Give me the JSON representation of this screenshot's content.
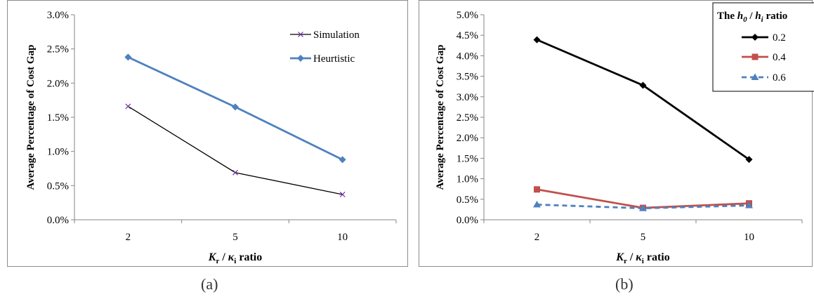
{
  "chart_data": [
    {
      "type": "line",
      "caption": "(a)",
      "ylabel": "Average Percentage of Cost Gap",
      "xlabel_parts": [
        "K",
        "r",
        " / ",
        "κ",
        "i",
        " ratio"
      ],
      "categories": [
        "2",
        "5",
        "10"
      ],
      "y_ticks": [
        "0.0%",
        "0.5%",
        "1.0%",
        "1.5%",
        "2.0%",
        "2.5%",
        "3.0%"
      ],
      "ylim": [
        0,
        3.0
      ],
      "grid": false,
      "legend_position": "top-right",
      "series": [
        {
          "name": "Simulation",
          "values": [
            1.66,
            0.69,
            0.37
          ],
          "color": "#000000",
          "marker": "x"
        },
        {
          "name": "Heurtistic",
          "values": [
            2.38,
            1.65,
            0.88
          ],
          "color": "#4f81bd",
          "marker": "diamond"
        }
      ]
    },
    {
      "type": "line",
      "caption": "(b)",
      "ylabel": "Average Percentage of Cost Gap",
      "xlabel_parts": [
        "K",
        "r",
        " / ",
        "κ",
        "i",
        " ratio"
      ],
      "categories": [
        "2",
        "5",
        "10"
      ],
      "y_ticks": [
        "0.0%",
        "0.5%",
        "1.0%",
        "1.5%",
        "2.0%",
        "2.5%",
        "3.0%",
        "3.5%",
        "4.0%",
        "4.5%",
        "5.0%"
      ],
      "ylim": [
        0,
        5.0
      ],
      "grid": false,
      "legend_position": "top-right",
      "legend_title_parts": [
        "The ",
        "h",
        "0",
        " / ",
        "h",
        "i",
        " ratio"
      ],
      "series": [
        {
          "name": "0.2",
          "values": [
            4.39,
            3.28,
            1.47
          ],
          "color": "#000000",
          "marker": "diamond"
        },
        {
          "name": "0.4",
          "values": [
            0.74,
            0.29,
            0.4
          ],
          "color": "#c0504d",
          "marker": "square"
        },
        {
          "name": "0.6",
          "values": [
            0.37,
            0.28,
            0.35
          ],
          "color": "#4f81bd",
          "marker": "triangle",
          "dashed": true
        }
      ]
    }
  ]
}
